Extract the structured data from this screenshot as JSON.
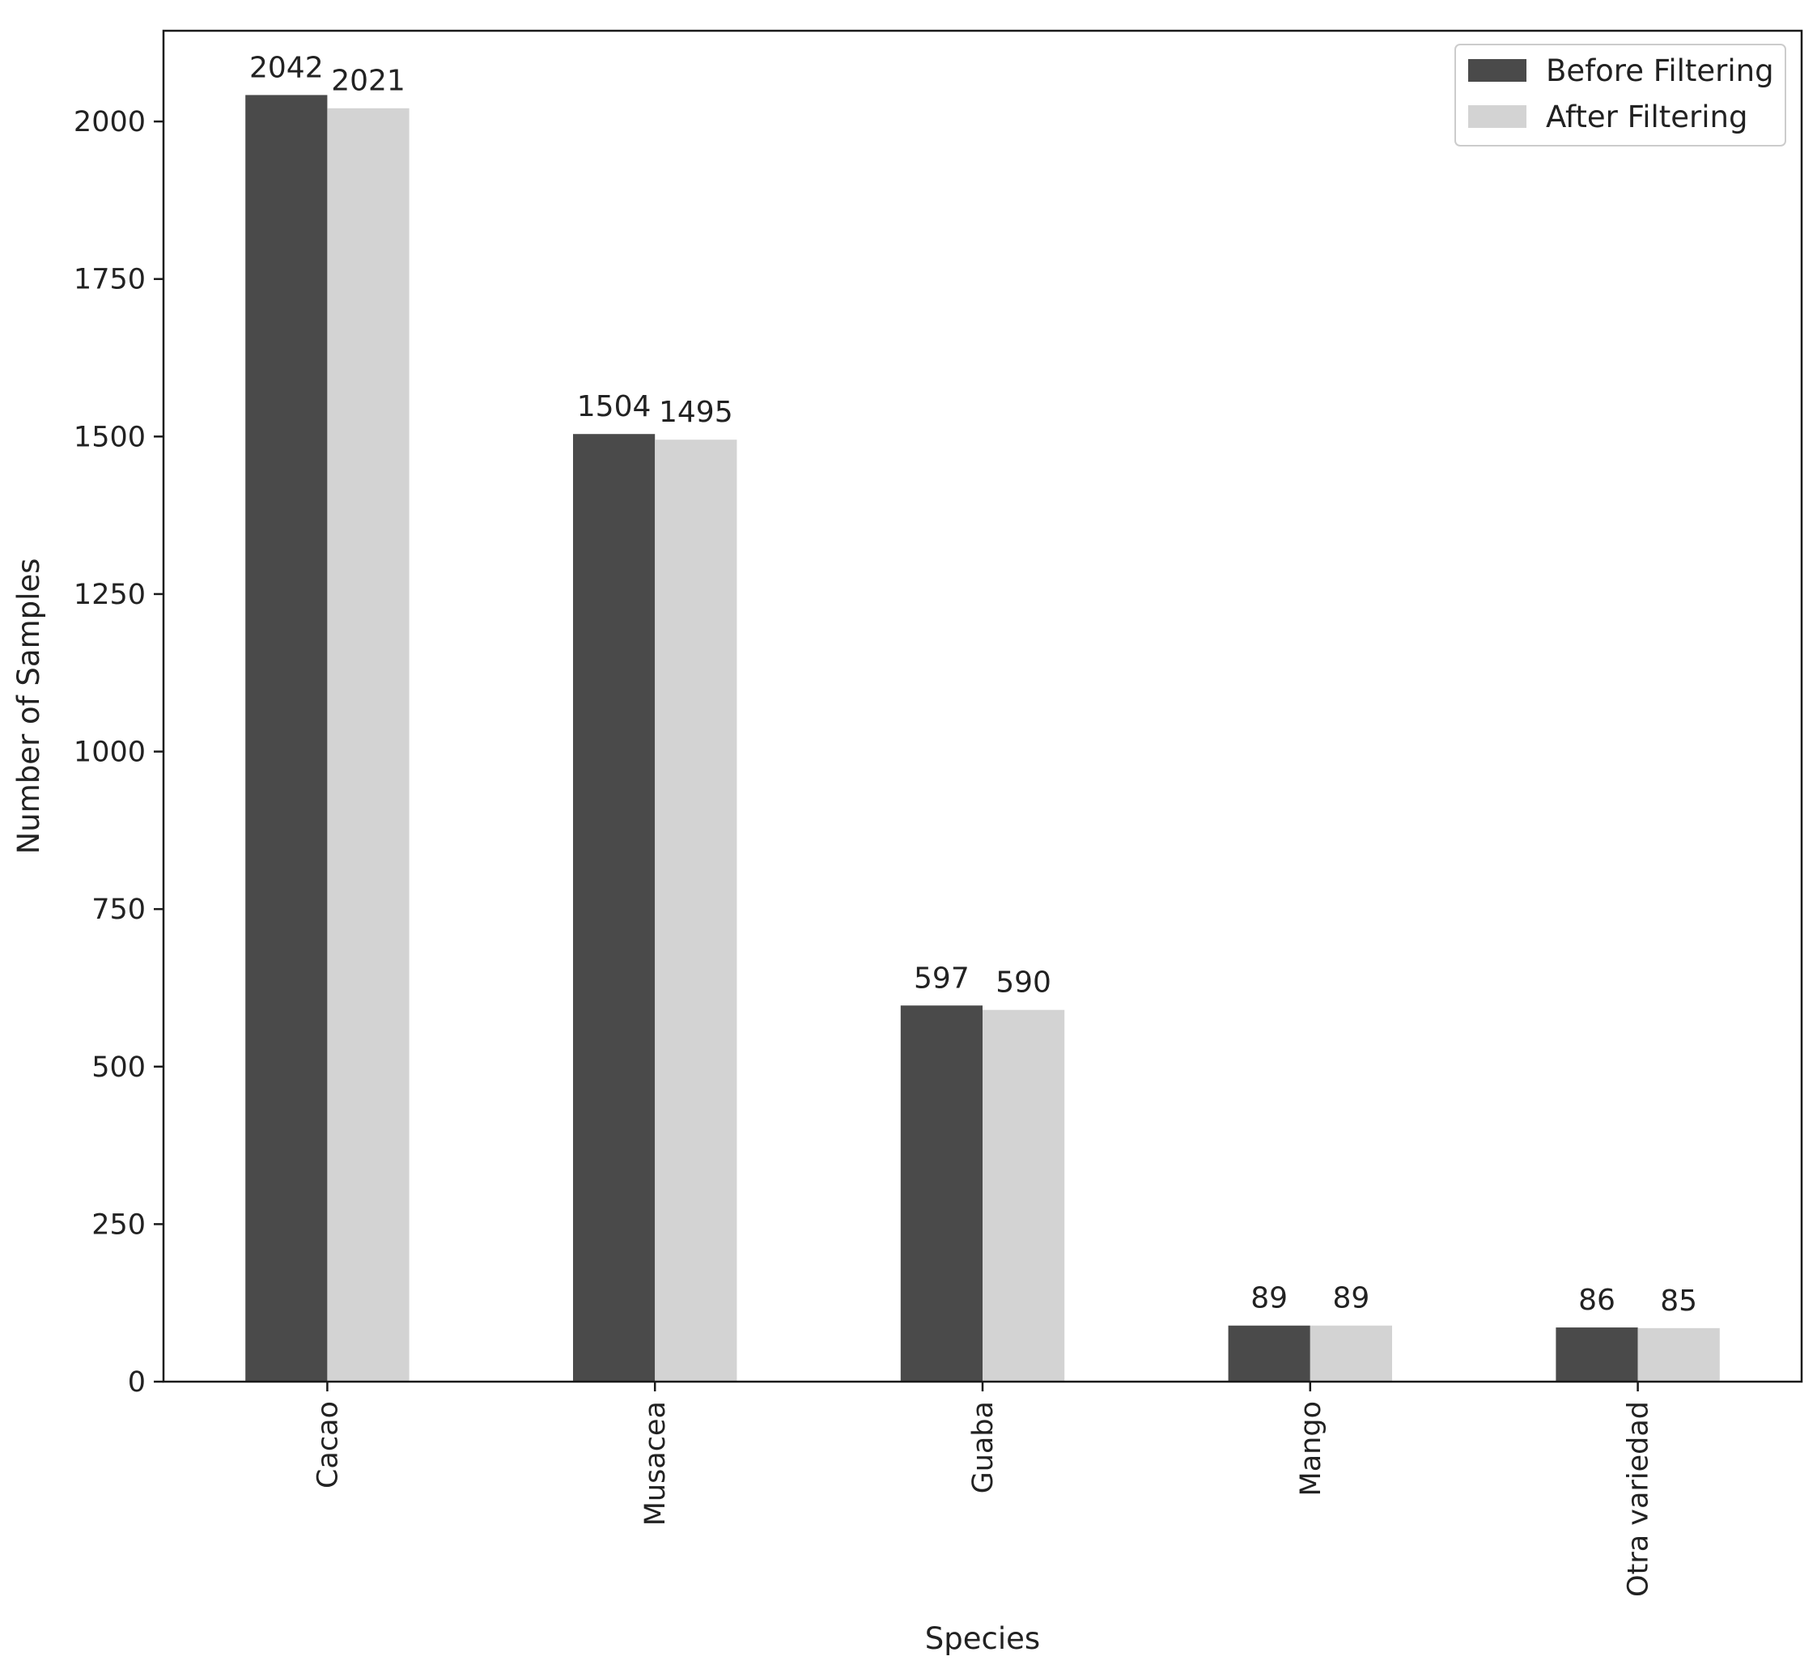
{
  "chart_data": {
    "type": "bar",
    "title": "",
    "xlabel": "Species",
    "ylabel": "Number of Samples",
    "categories": [
      "Cacao",
      "Musacea",
      "Guaba",
      "Mango",
      "Otra variedad"
    ],
    "series": [
      {
        "name": "Before Filtering",
        "values": [
          2042,
          1504,
          597,
          89,
          86
        ],
        "color": "#4a4a4a"
      },
      {
        "name": "After Filtering",
        "values": [
          2021,
          1495,
          590,
          89,
          85
        ],
        "color": "#d3d3d3"
      }
    ],
    "ylim": [
      0,
      2144
    ],
    "yticks": [
      0,
      250,
      500,
      750,
      1000,
      1250,
      1500,
      1750,
      2000
    ],
    "grid": false,
    "legend_position": "top-right",
    "data_labels": true,
    "xtick_rotation": 90
  }
}
